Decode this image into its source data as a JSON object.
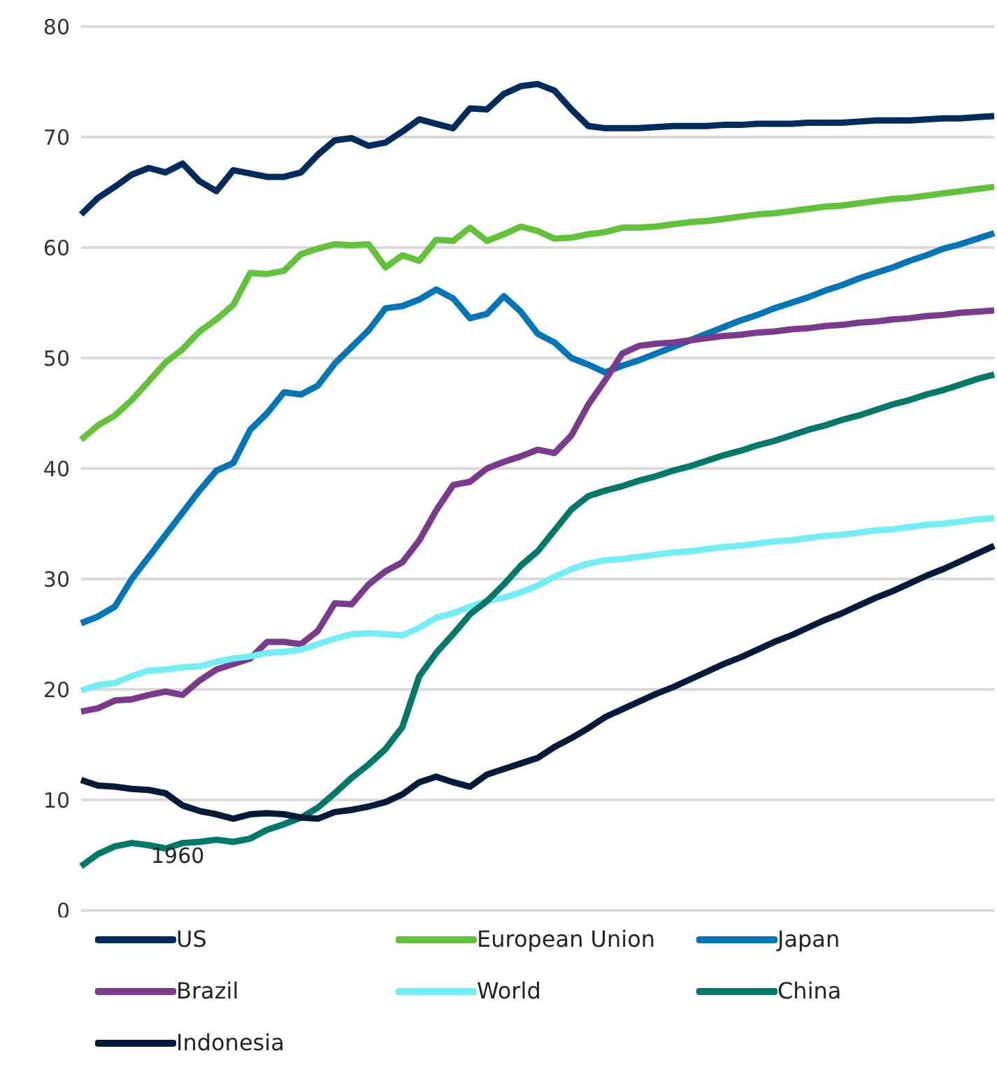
{
  "chart_data": {
    "type": "line",
    "categories": [
      null,
      null,
      null,
      null,
      null,
      null,
      null,
      null,
      null,
      null,
      null,
      null,
      null,
      null,
      null,
      null,
      null,
      null,
      null,
      null,
      null,
      null,
      null,
      null,
      null,
      null,
      null,
      null,
      null,
      null,
      null,
      null,
      null,
      null,
      null,
      null,
      null,
      null,
      null,
      null,
      null,
      null,
      null,
      null,
      null,
      null,
      null,
      null,
      null,
      null,
      null,
      null,
      null,
      null,
      null
    ],
    "ylim": [
      0,
      80
    ],
    "yticks": [
      0,
      10,
      20,
      30,
      40,
      50,
      60,
      70,
      80
    ],
    "grid": "y",
    "legend": "bottom",
    "tick_labels": "y",
    "marker": "none",
    "line_style": "solid",
    "annotations": [
      "1960"
    ],
    "series": [
      {
        "name": "US",
        "color": "#002b5c",
        "values": [
          63,
          64.5,
          65.5,
          66.6,
          67.2,
          66.8,
          67.6,
          66,
          65.1,
          67,
          66.7,
          66.4,
          66.4,
          66.8,
          68.4,
          69.7,
          69.9,
          69.2,
          69.5,
          70.5,
          71.6,
          71.2,
          70.8,
          72.6,
          72.5,
          73.9,
          74.6,
          74.8,
          74.2,
          72.5,
          71,
          70.8,
          70.8,
          70.8,
          70.9,
          71,
          71,
          71,
          71.1,
          71.1,
          71.2,
          71.2,
          71.2,
          71.3,
          71.3,
          71.3,
          71.4,
          71.5,
          71.5,
          71.5,
          71.6,
          71.7,
          71.7,
          71.8,
          71.9
        ]
      },
      {
        "name": "European Union",
        "color": "#62c23a",
        "values": [
          42.6,
          43.9,
          44.8,
          46.2,
          47.9,
          49.6,
          50.8,
          52.4,
          53.5,
          54.8,
          57.7,
          57.6,
          57.9,
          59.4,
          59.9,
          60.3,
          60.2,
          60.3,
          58.2,
          59.3,
          58.8,
          60.7,
          60.6,
          61.8,
          60.6,
          61.2,
          61.9,
          61.5,
          60.8,
          60.9,
          61.2,
          61.4,
          61.8,
          61.8,
          61.9,
          62.1,
          62.3,
          62.4,
          62.6,
          62.8,
          63,
          63.1,
          63.3,
          63.5,
          63.7,
          63.8,
          64,
          64.2,
          64.4,
          64.5,
          64.7,
          64.9,
          65.1,
          65.3,
          65.5
        ]
      },
      {
        "name": "Japan",
        "color": "#0076b6",
        "values": [
          26,
          26.6,
          27.5,
          30,
          32,
          34,
          36,
          38,
          39.8,
          40.5,
          43.5,
          45,
          46.9,
          46.7,
          47.5,
          49.5,
          51,
          52.5,
          54.5,
          54.7,
          55.3,
          56.2,
          55.4,
          53.6,
          54,
          55.6,
          54.2,
          52.2,
          51.4,
          50,
          49.4,
          48.7,
          49.3,
          49.8,
          50.4,
          51,
          51.6,
          52.2,
          52.8,
          53.4,
          53.9,
          54.5,
          55,
          55.5,
          56.1,
          56.6,
          57.2,
          57.7,
          58.2,
          58.8,
          59.3,
          59.9,
          60.3,
          60.8,
          61.3
        ]
      },
      {
        "name": "Brazil",
        "color": "#7b3b8c",
        "values": [
          18,
          18.3,
          19,
          19.1,
          19.5,
          19.8,
          19.5,
          20.8,
          21.8,
          22.3,
          22.8,
          24.3,
          24.3,
          24.1,
          25.3,
          27.8,
          27.7,
          29.5,
          30.7,
          31.5,
          33.5,
          36.2,
          38.5,
          38.8,
          40,
          40.6,
          41.1,
          41.7,
          41.4,
          43,
          45.8,
          48,
          50.4,
          51.1,
          51.3,
          51.4,
          51.6,
          51.8,
          52,
          52.1,
          52.3,
          52.4,
          52.6,
          52.7,
          52.9,
          53,
          53.2,
          53.3,
          53.5,
          53.6,
          53.8,
          53.9,
          54.1,
          54.2,
          54.3
        ]
      },
      {
        "name": "World",
        "color": "#74eef5",
        "values": [
          19.9,
          20.4,
          20.6,
          21.2,
          21.7,
          21.8,
          22,
          22.1,
          22.5,
          22.8,
          23,
          23.3,
          23.4,
          23.6,
          24.1,
          24.6,
          25,
          25.1,
          25,
          24.9,
          25.6,
          26.5,
          26.9,
          27.5,
          28,
          28.3,
          28.8,
          29.4,
          30.2,
          30.9,
          31.4,
          31.7,
          31.8,
          32,
          32.2,
          32.4,
          32.5,
          32.7,
          32.9,
          33,
          33.2,
          33.4,
          33.5,
          33.7,
          33.9,
          34,
          34.2,
          34.4,
          34.5,
          34.7,
          34.9,
          35,
          35.2,
          35.4,
          35.5
        ]
      },
      {
        "name": "China",
        "color": "#00796b",
        "values": [
          4,
          5.1,
          5.8,
          6.1,
          5.9,
          5.6,
          6.1,
          6.2,
          6.4,
          6.2,
          6.5,
          7.3,
          7.8,
          8.4,
          9.3,
          10.6,
          12,
          13.2,
          14.6,
          16.6,
          21.2,
          23.3,
          25,
          26.8,
          28,
          29.5,
          31.2,
          32.5,
          34.4,
          36.3,
          37.5,
          38,
          38.4,
          38.9,
          39.3,
          39.8,
          40.2,
          40.7,
          41.2,
          41.6,
          42.1,
          42.5,
          43,
          43.5,
          43.9,
          44.4,
          44.8,
          45.3,
          45.8,
          46.2,
          46.7,
          47.1,
          47.6,
          48.1,
          48.5
        ]
      },
      {
        "name": "Indonesia",
        "color": "#001a3a",
        "values": [
          11.8,
          11.3,
          11.2,
          11,
          10.9,
          10.6,
          9.5,
          9,
          8.7,
          8.3,
          8.7,
          8.8,
          8.7,
          8.4,
          8.3,
          8.9,
          9.1,
          9.4,
          9.8,
          10.5,
          11.6,
          12.1,
          11.6,
          11.2,
          12.3,
          12.8,
          13.3,
          13.8,
          14.8,
          15.6,
          16.5,
          17.5,
          18.2,
          18.9,
          19.6,
          20.2,
          20.9,
          21.6,
          22.3,
          22.9,
          23.6,
          24.3,
          24.9,
          25.6,
          26.3,
          26.9,
          27.6,
          28.3,
          28.9,
          29.6,
          30.3,
          30.9,
          31.6,
          32.3,
          33
        ]
      }
    ]
  }
}
